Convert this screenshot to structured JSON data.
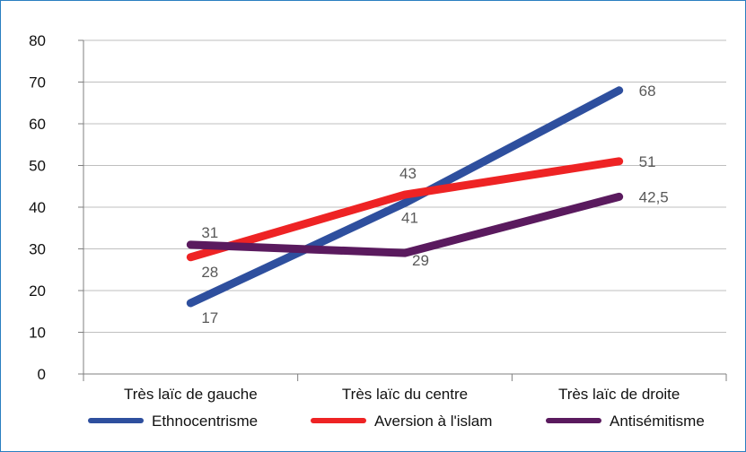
{
  "chart_data": {
    "type": "line",
    "title": "",
    "xlabel": "",
    "ylabel": "",
    "categories": [
      "Très laïc de gauche",
      "Très laïc du centre",
      "Très laïc de droite"
    ],
    "ylim": [
      0,
      80
    ],
    "yticks": [
      0,
      10,
      20,
      30,
      40,
      50,
      60,
      70,
      80
    ],
    "grid": true,
    "legend_position": "bottom",
    "series": [
      {
        "name": "Ethnocentrisme",
        "color": "#2e4f9e",
        "values": [
          17,
          41,
          68
        ],
        "labels": [
          "17",
          "41",
          "68"
        ]
      },
      {
        "name": "Aversion à l'islam",
        "color": "#ee2324",
        "values": [
          28,
          43,
          51
        ],
        "labels": [
          "28",
          "43",
          "51"
        ]
      },
      {
        "name": "Antisémitisme",
        "color": "#5a1a5e",
        "values": [
          31,
          29,
          42.5
        ],
        "labels": [
          "31",
          "29",
          "42,5"
        ]
      }
    ]
  }
}
